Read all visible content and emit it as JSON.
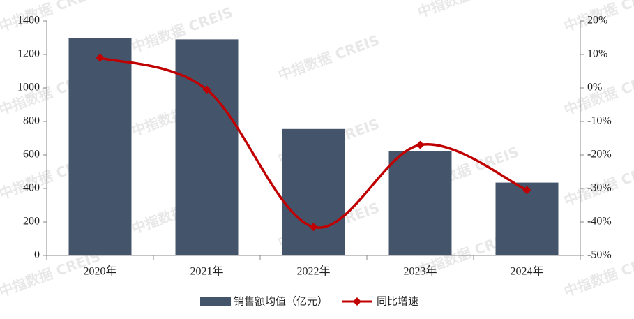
{
  "chart_data": {
    "type": "bar",
    "watermark": "中指数据 CREIS",
    "categories": [
      "2020年",
      "2021年",
      "2022年",
      "2023年",
      "2024年"
    ],
    "series": [
      {
        "name": "销售额均值（亿元）",
        "type": "bar",
        "color": "#44546a",
        "values": [
          1300,
          1290,
          755,
          625,
          435
        ]
      },
      {
        "name": "同比增速",
        "type": "line",
        "axis": "y2",
        "color": "#c00000",
        "values": [
          9,
          -0.5,
          -41.5,
          -17,
          -30.5
        ]
      }
    ],
    "ylim": [
      0,
      1400
    ],
    "yticks": [
      0,
      200,
      400,
      600,
      800,
      1000,
      1200,
      1400
    ],
    "y2lim": [
      -50,
      20
    ],
    "y2ticks": [
      {
        "value": -50,
        "label": "-50%"
      },
      {
        "value": -40,
        "label": "-40%"
      },
      {
        "value": -30,
        "label": "-30%"
      },
      {
        "value": -20,
        "label": "-20%"
      },
      {
        "value": -10,
        "label": "-10%"
      },
      {
        "value": 0,
        "label": "0%"
      },
      {
        "value": 10,
        "label": "10%"
      },
      {
        "value": 20,
        "label": "20%"
      }
    ],
    "grid": false
  }
}
